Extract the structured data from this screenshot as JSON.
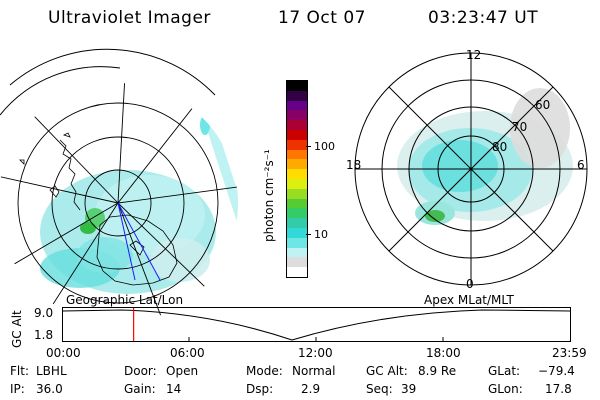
{
  "header": {
    "title": "Ultraviolet Imager",
    "date": "17 Oct 07",
    "time": "03:23:47 UT"
  },
  "colorbar": {
    "unit_label": "photon cm⁻²s⁻¹",
    "tick_100": "100",
    "tick_10": "10",
    "colors": [
      "#ffffff",
      "#dddddd",
      "#bff2f2",
      "#6ee6e6",
      "#33d9d9",
      "#33ccaa",
      "#33cc66",
      "#55cc33",
      "#99dd22",
      "#ddee11",
      "#ffdd00",
      "#ffaa00",
      "#ff7700",
      "#ee3300",
      "#cc0000",
      "#aa0033",
      "#880066",
      "#660088",
      "#330044",
      "#000000"
    ]
  },
  "left_map": {
    "label": "Geographic Lat/Lon"
  },
  "right_map": {
    "label": "Apex MLat/MLT",
    "mlt_12": "12",
    "mlt_18": "18",
    "mlt_6": "6",
    "mlt_0": "0",
    "lat_60": "60",
    "lat_70": "70",
    "lat_80": "80"
  },
  "altitude_strip": {
    "axis_label": "GC Alt",
    "y_max": "9.0",
    "y_min": "1.8",
    "time_ticks": [
      "00:00",
      "06:00",
      "12:00",
      "18:00",
      "23:59"
    ],
    "current_time_fraction": 0.141
  },
  "status": {
    "flt_label": "Flt:",
    "flt_value": "LBHL",
    "ip_label": "IP:",
    "ip_value": "36.0",
    "door_label": "Door:",
    "door_value": "Open",
    "gain_label": "Gain:",
    "gain_value": "14",
    "mode_label": "Mode:",
    "mode_value": "Normal",
    "dsp_label": "Dsp:",
    "dsp_value": "2.9",
    "gcalt_label": "GC Alt:",
    "gcalt_value": "8.9 Re",
    "seq_label": "Seq:",
    "seq_value": "39",
    "glat_label": "GLat:",
    "glat_value": "−79.4",
    "glon_label": "GLon:",
    "glon_value": "17.8"
  }
}
